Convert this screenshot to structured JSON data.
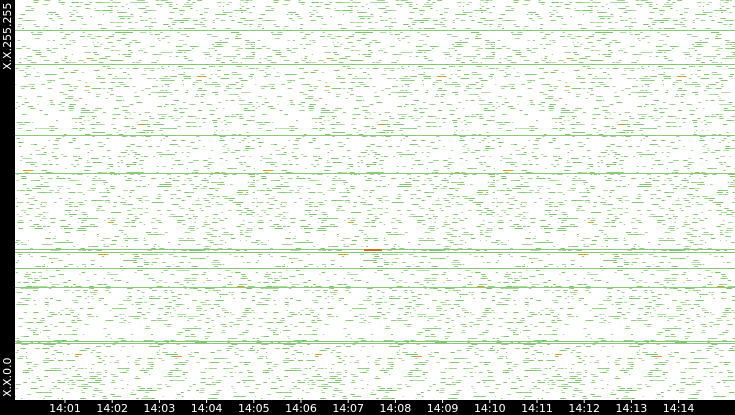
{
  "chart_data": {
    "type": "heatmap",
    "y_top_label": "X.X.255.255",
    "y_bottom_label": "X.X.0.0",
    "x_tick_labels": [
      "14:01",
      "14:02",
      "14:03",
      "14:04",
      "14:05",
      "14:06",
      "14:07",
      "14:08",
      "14:09",
      "14:10",
      "14:11",
      "14:12",
      "14:13",
      "14:14"
    ],
    "color": "#7cc36a"
  }
}
